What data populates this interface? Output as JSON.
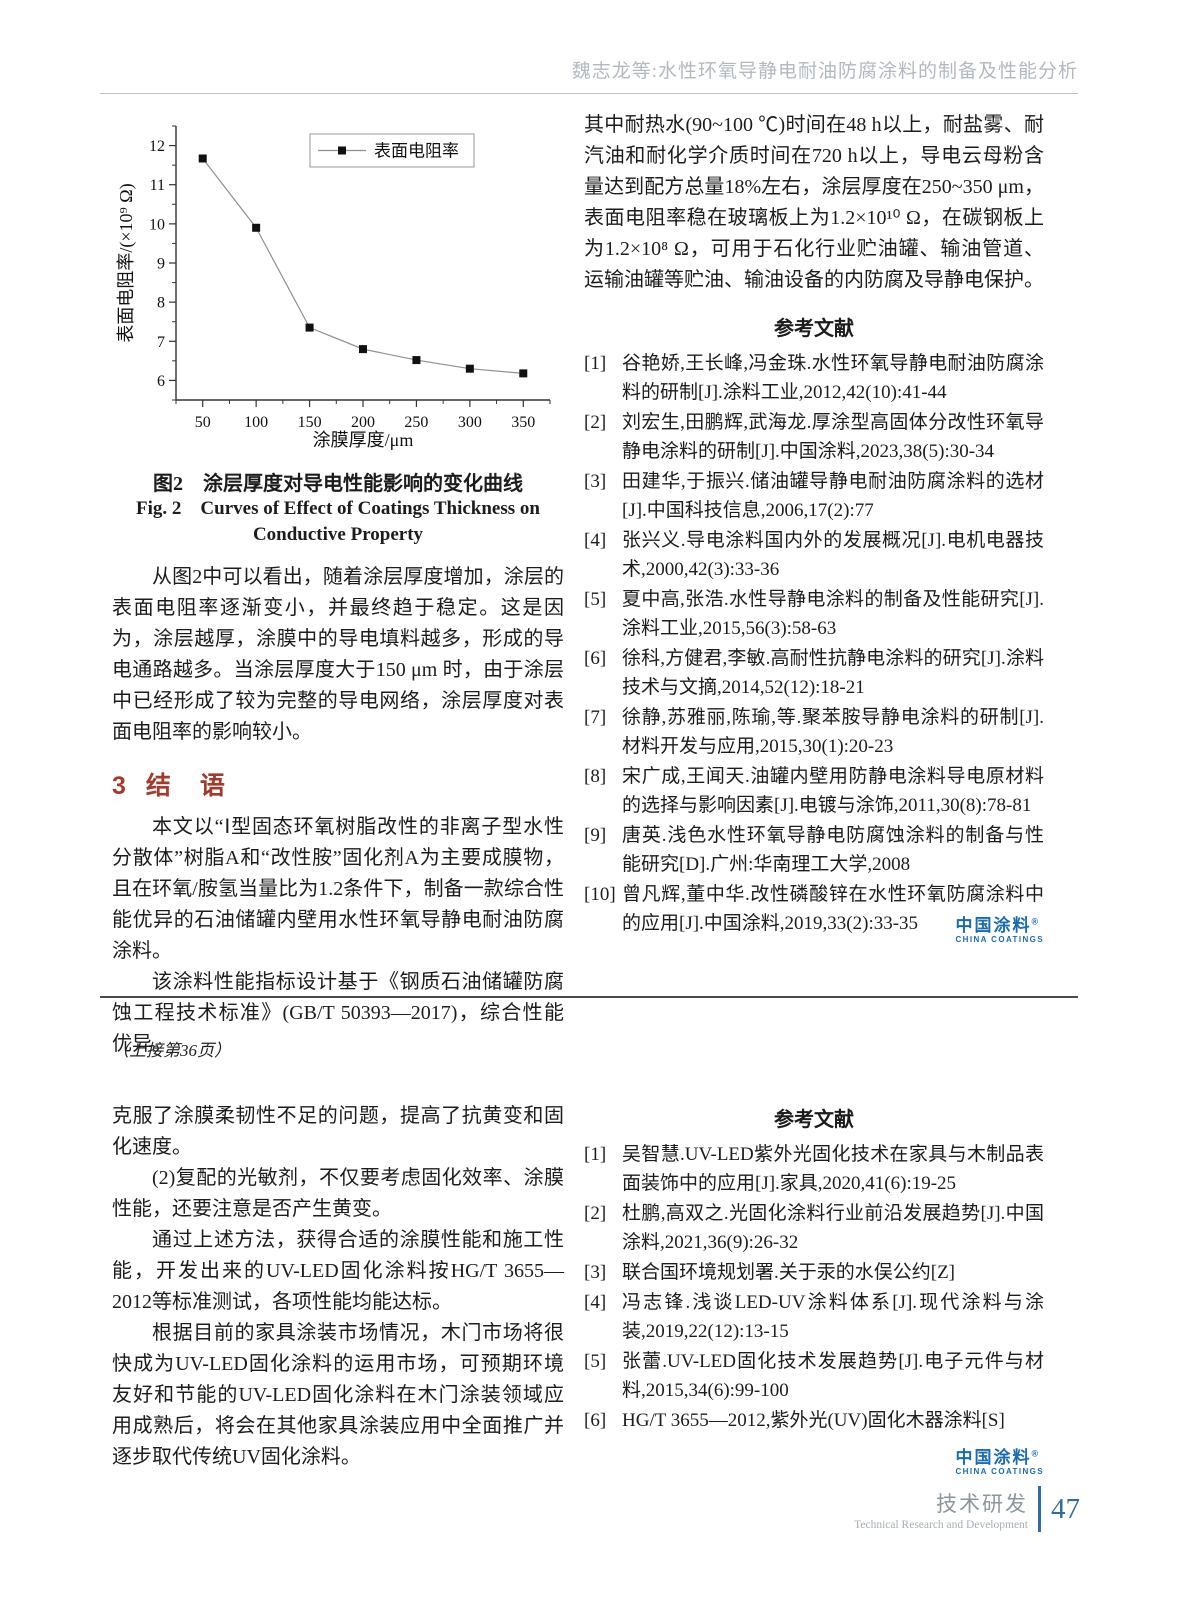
{
  "page": {
    "header": "魏志龙等:水性环氧导静电耐油防腐涂料的制备及性能分析"
  },
  "chart_data": {
    "type": "line",
    "title": "",
    "x": [
      50,
      100,
      150,
      200,
      250,
      300,
      350
    ],
    "series": [
      {
        "name": "表面电阻率",
        "values": [
          11.67,
          9.9,
          7.35,
          6.8,
          6.52,
          6.3,
          6.18
        ]
      }
    ],
    "xlabel": "涂膜厚度/μm",
    "ylabel": "表面电阻率/(×10⁹ Ω)",
    "xlim": [
      25,
      375
    ],
    "ylim": [
      5.5,
      12.5
    ],
    "xticks": [
      50,
      100,
      150,
      200,
      250,
      300,
      350
    ],
    "yticks": [
      6,
      7,
      8,
      9,
      10,
      11,
      12
    ],
    "x_minor_step": 25,
    "y_minor_step": 0.5,
    "grid": false,
    "legend_position": "top-center",
    "marker": "black-square",
    "line_color": "#8f8f8f"
  },
  "article1": {
    "cont_para": "其中耐热水(90~100 ℃)时间在48 h以上，耐盐雾、耐汽油和耐化学介质时间在720 h以上，导电云母粉含量达到配方总量18%左右，涂层厚度在250~350 μm，表面电阻率稳在玻璃板上为1.2×10¹⁰ Ω，在碳钢板上为1.2×10⁸ Ω，可用于石化行业贮油罐、输油管道、运输油罐等贮油、输油设备的内防腐及导静电保护。",
    "fig_caption_cn": "图2　涂层厚度对导电性能影响的变化曲线",
    "fig_caption_en1": "Fig. 2　Curves of Effect of Coatings Thickness on",
    "fig_caption_en2": "Conductive Property",
    "para_fig": "从图2中可以看出，随着涂层厚度增加，涂层的表面电阻率逐渐变小，并最终趋于稳定。这是因为，涂层越厚，涂膜中的导电填料越多，形成的导电通路越多。当涂层厚度大于150 μm 时，由于涂层中已经形成了较为完整的导电网络，涂层厚度对表面电阻率的影响较小。",
    "sec_no": "3",
    "sec_title": "结　语",
    "concl_p1": "本文以“Ⅰ型固态环氧树脂改性的非离子型水性分散体”树脂A和“改性胺”固化剂A为主要成膜物，且在环氧/胺氢当量比为1.2条件下，制备一款综合性能优异的石油储罐内壁用水性环氧导静电耐油防腐涂料。",
    "concl_p2": "该涂料性能指标设计基于《钢质石油储罐防腐蚀工程技术标准》(GB/T 50393—2017)，综合性能优异。",
    "refs_title": "参考文献",
    "references": [
      {
        "label": "[1]",
        "text": "谷艳娇,王长峰,冯金珠.水性环氧导静电耐油防腐涂料的研制[J].涂料工业,2012,42(10):41-44"
      },
      {
        "label": "[2]",
        "text": "刘宏生,田鹏辉,武海龙.厚涂型高固体分改性环氧导静电涂料的研制[J].中国涂料,2023,38(5):30-34"
      },
      {
        "label": "[3]",
        "text": "田建华,于振兴.储油罐导静电耐油防腐涂料的选材[J].中国科技信息,2006,17(2):77"
      },
      {
        "label": "[4]",
        "text": "张兴义.导电涂料国内外的发展概况[J].电机电器技术,2000,42(3):33-36"
      },
      {
        "label": "[5]",
        "text": "夏中高,张浩.水性导静电涂料的制备及性能研究[J].涂料工业,2015,56(3):58-63"
      },
      {
        "label": "[6]",
        "text": "徐科,方健君,李敏.高耐性抗静电涂料的研究[J].涂料技术与文摘,2014,52(12):18-21"
      },
      {
        "label": "[7]",
        "text": "徐静,苏雅丽,陈瑜,等.聚苯胺导静电涂料的研制[J].材料开发与应用,2015,30(1):20-23"
      },
      {
        "label": "[8]",
        "text": "宋广成,王闻天.油罐内壁用防静电涂料导电原材料的选择与影响因素[J].电镀与涂饰,2011,30(8):78-81"
      },
      {
        "label": "[9]",
        "text": "唐英.浅色水性环氧导静电防腐蚀涂料的制备与性能研究[D].广州:华南理工大学,2008"
      },
      {
        "label": "[10]",
        "text": "曾凡辉,董中华.改性磷酸锌在水性环氧防腐涂料中的应用[J].中国涂料,2019,33(2):33-35"
      }
    ]
  },
  "article2": {
    "note": "（上接第36页）",
    "p1": "克服了涂膜柔韧性不足的问题，提高了抗黄变和固化速度。",
    "p2": "(2)复配的光敏剂，不仅要考虑固化效率、涂膜性能，还要注意是否产生黄变。",
    "p3": "通过上述方法，获得合适的涂膜性能和施工性能，开发出来的UV-LED固化涂料按HG/T 3655—2012等标准测试，各项性能均能达标。",
    "p4": "根据目前的家具涂装市场情况，木门市场将很快成为UV-LED固化涂料的运用市场，可预期环境友好和节能的UV-LED固化涂料在木门涂装领域应用成熟后，将会在其他家具涂装应用中全面推广并逐步取代传统UV固化涂料。",
    "refs_title": "参考文献",
    "references": [
      {
        "label": "[1]",
        "text": "吴智慧.UV-LED紫外光固化技术在家具与木制品表面装饰中的应用[J].家具,2020,41(6):19-25"
      },
      {
        "label": "[2]",
        "text": "杜鹏,高双之.光固化涂料行业前沿发展趋势[J].中国涂料,2021,36(9):26-32"
      },
      {
        "label": "[3]",
        "text": "联合国环境规划署.关于汞的水俣公约[Z]"
      },
      {
        "label": "[4]",
        "text": "冯志锋.浅谈LED-UV涂料体系[J].现代涂料与涂装,2019,22(12):13-15"
      },
      {
        "label": "[5]",
        "text": "张蕾.UV-LED固化技术发展趋势[J].电子元件与材料,2015,34(6):99-100"
      },
      {
        "label": "[6]",
        "text": "HG/T 3655—2012,紫外光(UV)固化木器涂料[S]"
      }
    ]
  },
  "logo": {
    "cn": "中国涂料",
    "reg": "®",
    "en": "CHINA COATINGS"
  },
  "footer": {
    "cn": "技术研发",
    "en": "Technical Research and Development",
    "page": "47"
  }
}
